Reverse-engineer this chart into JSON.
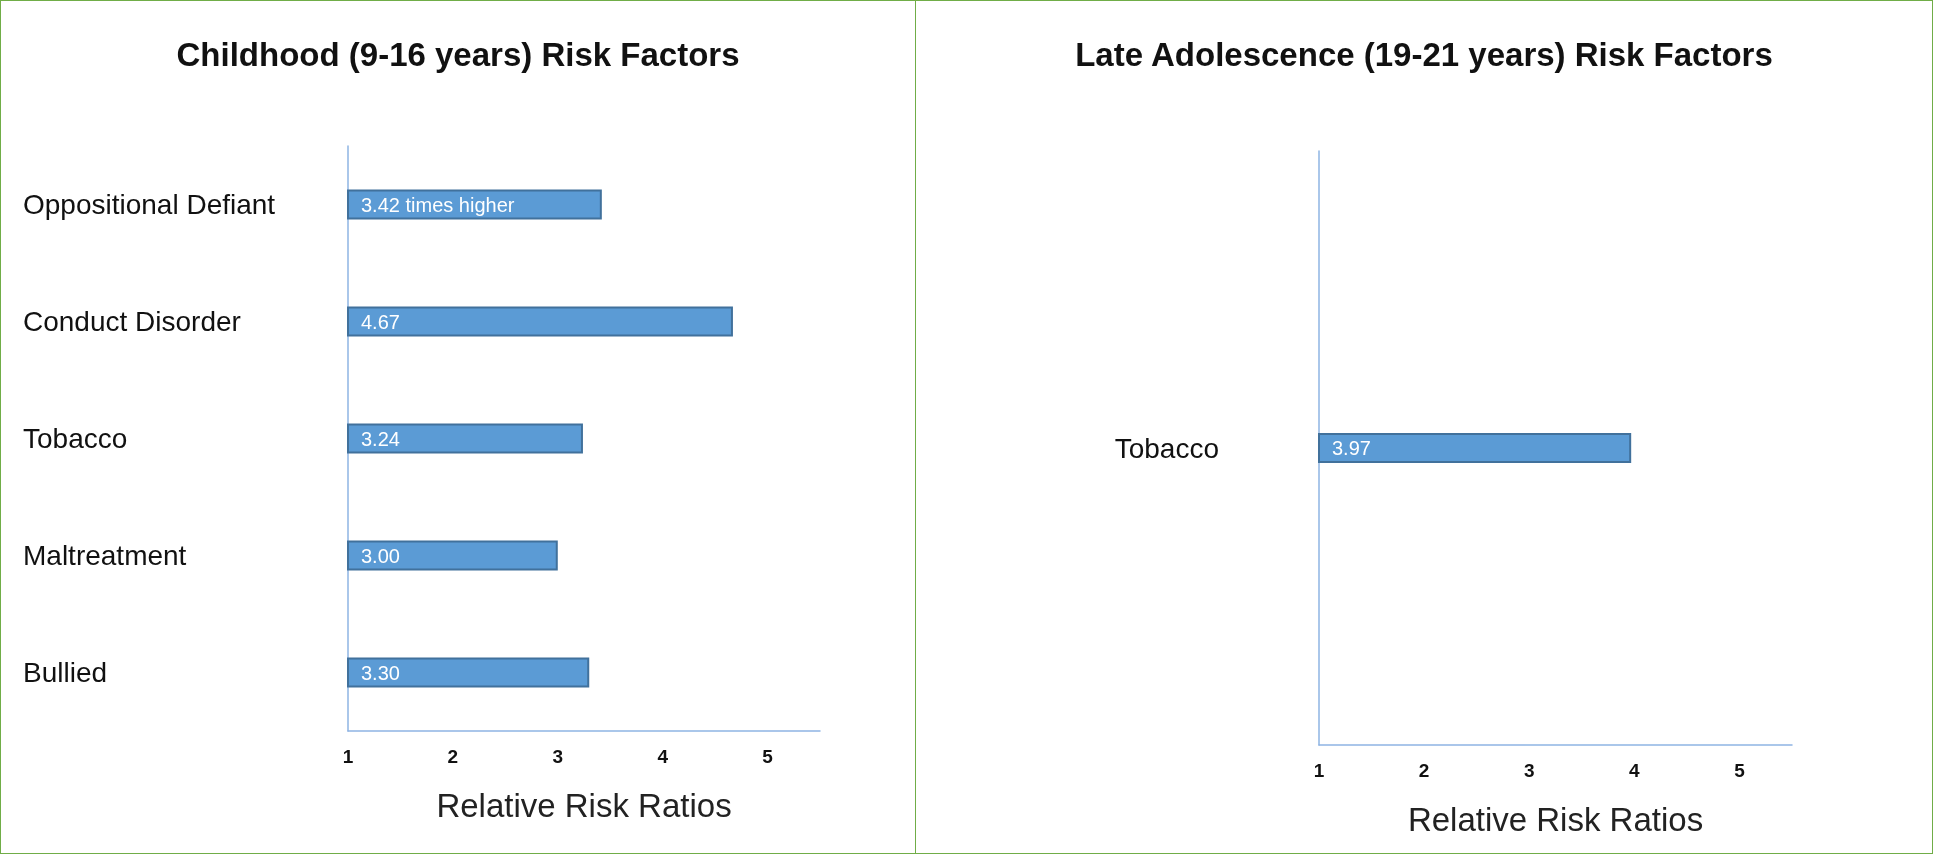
{
  "chart_data": [
    {
      "type": "bar",
      "orientation": "horizontal",
      "title": "Childhood (9-16 years) Risk Factors",
      "xlabel": "Relative Risk Ratios",
      "categories": [
        "Oppositional Defiant",
        "Conduct Disorder",
        "Tobacco",
        "Maltreatment",
        "Bullied"
      ],
      "values": [
        3.42,
        4.67,
        3.24,
        3.0,
        3.3
      ],
      "value_labels": [
        "3.42 times higher",
        "4.67",
        "3.24",
        "3.00",
        "3.30"
      ],
      "color": "#5b9bd5",
      "xlim": [
        1,
        5.5
      ],
      "xticks": [
        1,
        2,
        3,
        4,
        5
      ],
      "grid": false
    },
    {
      "type": "bar",
      "orientation": "horizontal",
      "title": "Late Adolescence (19-21 years) Risk Factors",
      "xlabel": "Relative Risk Ratios",
      "categories": [
        "Tobacco"
      ],
      "values": [
        3.97
      ],
      "value_labels": [
        "3.97"
      ],
      "color": "#5b9bd5",
      "xlim": [
        1,
        5.5
      ],
      "xticks": [
        1,
        2,
        3,
        4,
        5
      ],
      "grid": false
    }
  ]
}
